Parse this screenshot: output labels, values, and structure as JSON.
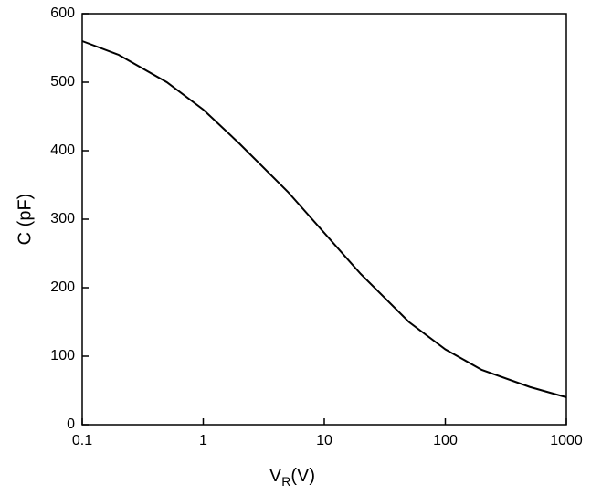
{
  "chart_data": {
    "type": "line",
    "ylabel": "C (pF)",
    "xlabel_parts": [
      "V",
      "R",
      "(V)"
    ],
    "x": [
      0.1,
      0.2,
      0.5,
      1,
      2,
      5,
      10,
      20,
      50,
      100,
      200,
      500,
      1000
    ],
    "values": [
      560,
      540,
      500,
      460,
      410,
      340,
      280,
      220,
      150,
      110,
      80,
      55,
      40
    ],
    "color": "#000000",
    "xscale": "log",
    "xlim": [
      0.1,
      1000
    ],
    "xticks": [
      0.1,
      1,
      10,
      100,
      1000
    ],
    "ylim": [
      0,
      600
    ],
    "yticks": [
      0,
      100,
      200,
      300,
      400,
      500,
      600
    ]
  }
}
